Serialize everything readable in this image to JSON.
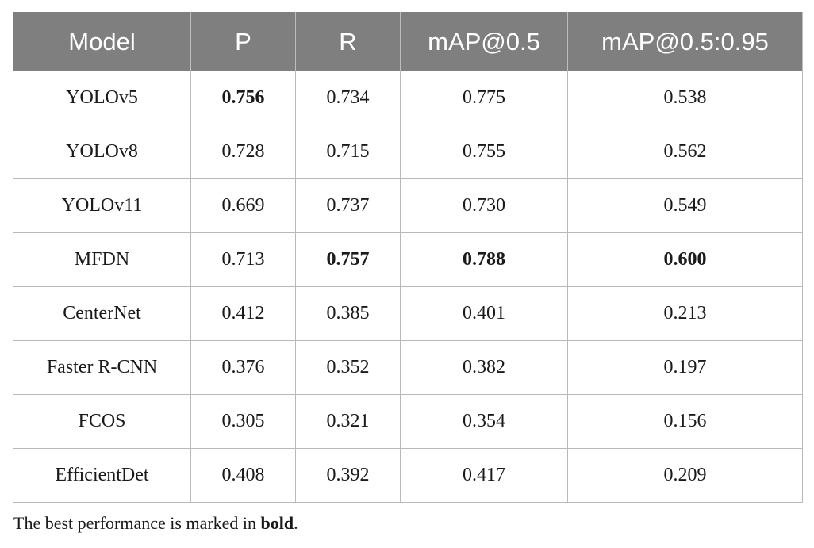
{
  "table": {
    "headers": [
      "Model",
      "P",
      "R",
      "mAP@0.5",
      "mAP@0.5:0.95"
    ],
    "rows": [
      {
        "model": "YOLOv5",
        "p": "0.756",
        "r": "0.734",
        "map50": "0.775",
        "map5095": "0.538"
      },
      {
        "model": "YOLOv8",
        "p": "0.728",
        "r": "0.715",
        "map50": "0.755",
        "map5095": "0.562"
      },
      {
        "model": "YOLOv11",
        "p": "0.669",
        "r": "0.737",
        "map50": "0.730",
        "map5095": "0.549"
      },
      {
        "model": "MFDN",
        "p": "0.713",
        "r": "0.757",
        "map50": "0.788",
        "map5095": "0.600"
      },
      {
        "model": "CenterNet",
        "p": "0.412",
        "r": "0.385",
        "map50": "0.401",
        "map5095": "0.213"
      },
      {
        "model": "Faster R-CNN",
        "p": "0.376",
        "r": "0.352",
        "map50": "0.382",
        "map5095": "0.197"
      },
      {
        "model": "FCOS",
        "p": "0.305",
        "r": "0.321",
        "map50": "0.354",
        "map5095": "0.156"
      },
      {
        "model": "EfficientDet",
        "p": "0.408",
        "r": "0.392",
        "map50": "0.417",
        "map5095": "0.209"
      }
    ]
  },
  "footnote": {
    "prefix": "The best performance is marked in ",
    "emphasis": "bold",
    "suffix": "."
  },
  "colors": {
    "header_background": "#7f7f7f",
    "header_text": "#ffffff",
    "grid_line": "#b9b9b9"
  }
}
